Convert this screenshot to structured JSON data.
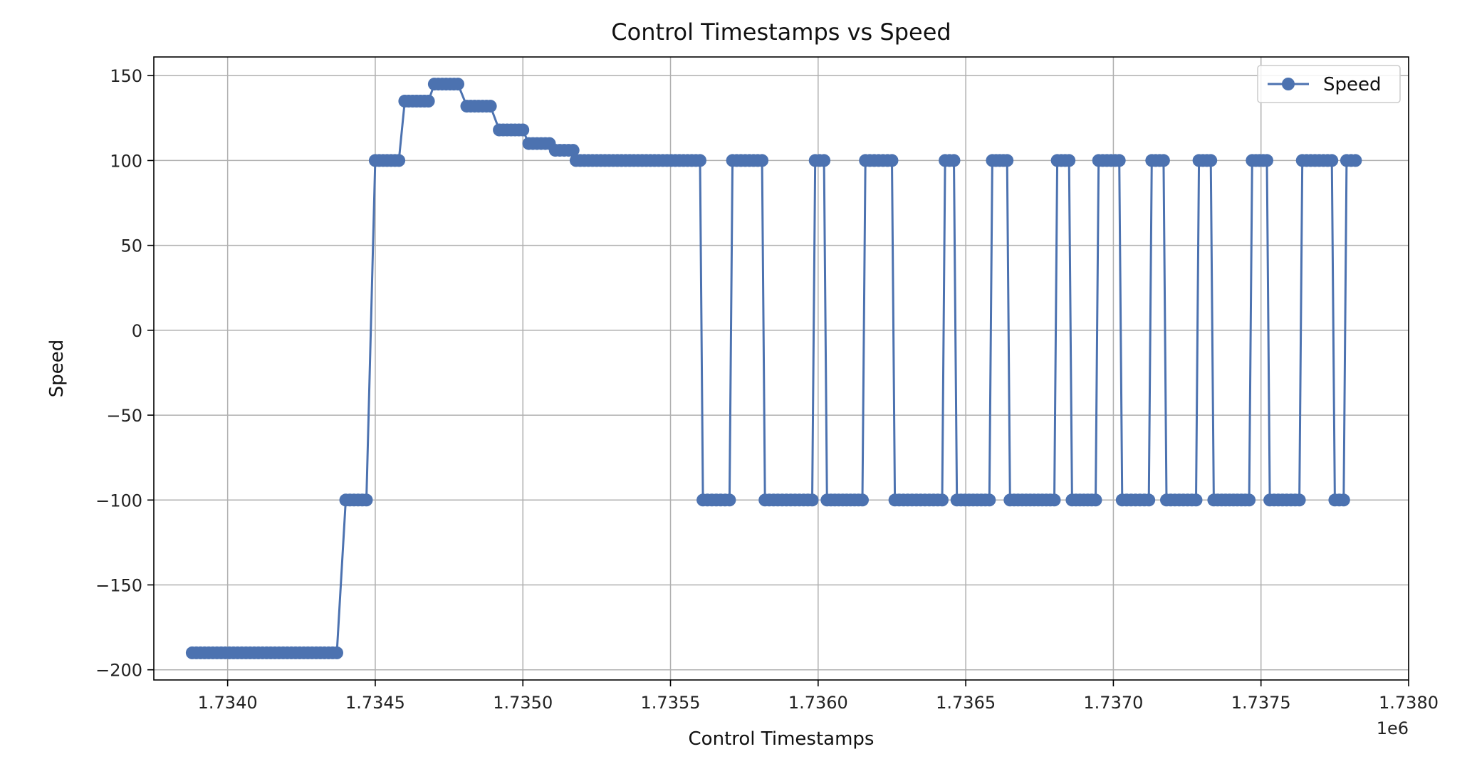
{
  "chart_data": {
    "type": "line",
    "title": "Control Timestamps vs Speed",
    "xlabel": "Control Timestamps",
    "ylabel": "Speed",
    "x_offset_label": "1e6",
    "x_scale": 1000000,
    "xlim": [
      1733750,
      1738000
    ],
    "ylim": [
      -206,
      161
    ],
    "x_ticks": [
      1734000,
      1734500,
      1735000,
      1735500,
      1736000,
      1736500,
      1737000,
      1737500,
      1738000
    ],
    "x_tick_labels": [
      "1.7340",
      "1.7345",
      "1.7350",
      "1.7355",
      "1.7360",
      "1.7365",
      "1.7370",
      "1.7375",
      "1.7380"
    ],
    "y_ticks": [
      -200,
      -150,
      -100,
      -50,
      0,
      50,
      100,
      150
    ],
    "y_tick_labels": [
      "−200",
      "−150",
      "−100",
      "−50",
      "0",
      "50",
      "100",
      "150"
    ],
    "grid": true,
    "legend_position": "top-right",
    "color": "#4c72b0",
    "series": [
      {
        "name": "Speed",
        "marker": "circle",
        "segments": [
          {
            "x_start": 1733880,
            "x_end": 1734370,
            "y": -190
          },
          {
            "x_start": 1734400,
            "x_end": 1734470,
            "y": -100
          },
          {
            "x_start": 1734500,
            "x_end": 1734580,
            "y": 100
          },
          {
            "x_start": 1734600,
            "x_end": 1734680,
            "y": 135
          },
          {
            "x_start": 1734700,
            "x_end": 1734780,
            "y": 145
          },
          {
            "x_start": 1734810,
            "x_end": 1734890,
            "y": 132
          },
          {
            "x_start": 1734920,
            "x_end": 1735000,
            "y": 118
          },
          {
            "x_start": 1735020,
            "x_end": 1735090,
            "y": 110
          },
          {
            "x_start": 1735110,
            "x_end": 1735170,
            "y": 106
          },
          {
            "x_start": 1735180,
            "x_end": 1735600,
            "y": 100
          },
          {
            "x_start": 1735610,
            "x_end": 1735700,
            "y": -100
          },
          {
            "x_start": 1735710,
            "x_end": 1735810,
            "y": 100
          },
          {
            "x_start": 1735820,
            "x_end": 1735980,
            "y": -100
          },
          {
            "x_start": 1735990,
            "x_end": 1736020,
            "y": 100
          },
          {
            "x_start": 1736030,
            "x_end": 1736150,
            "y": -100
          },
          {
            "x_start": 1736160,
            "x_end": 1736250,
            "y": 100
          },
          {
            "x_start": 1736260,
            "x_end": 1736420,
            "y": -100
          },
          {
            "x_start": 1736430,
            "x_end": 1736460,
            "y": 100
          },
          {
            "x_start": 1736470,
            "x_end": 1736580,
            "y": -100
          },
          {
            "x_start": 1736590,
            "x_end": 1736640,
            "y": 100
          },
          {
            "x_start": 1736650,
            "x_end": 1736800,
            "y": -100
          },
          {
            "x_start": 1736810,
            "x_end": 1736850,
            "y": 100
          },
          {
            "x_start": 1736860,
            "x_end": 1736940,
            "y": -100
          },
          {
            "x_start": 1736950,
            "x_end": 1737020,
            "y": 100
          },
          {
            "x_start": 1737030,
            "x_end": 1737120,
            "y": -100
          },
          {
            "x_start": 1737130,
            "x_end": 1737170,
            "y": 100
          },
          {
            "x_start": 1737180,
            "x_end": 1737280,
            "y": -100
          },
          {
            "x_start": 1737290,
            "x_end": 1737330,
            "y": 100
          },
          {
            "x_start": 1737340,
            "x_end": 1737460,
            "y": -100
          },
          {
            "x_start": 1737470,
            "x_end": 1737520,
            "y": 100
          },
          {
            "x_start": 1737530,
            "x_end": 1737630,
            "y": -100
          },
          {
            "x_start": 1737640,
            "x_end": 1737740,
            "y": 100
          },
          {
            "x_start": 1737750,
            "x_end": 1737780,
            "y": -100
          },
          {
            "x_start": 1737790,
            "x_end": 1737820,
            "y": 100
          }
        ],
        "point_spacing": 14
      }
    ]
  }
}
